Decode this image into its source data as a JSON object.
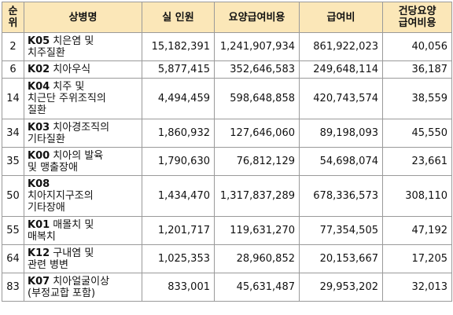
{
  "headers": {
    "rank": [
      "순",
      "위"
    ],
    "disease": "상병명",
    "patients": "실 인원",
    "care_cost": "요양급여비용",
    "benefit": "급여비",
    "per_case": [
      "건당요양",
      "급여비용"
    ]
  },
  "rows": [
    {
      "rank": "2",
      "code": "K05",
      "name_lines": [
        " 치은염 및",
        "치주질환"
      ],
      "patients": "15,182,391",
      "care_cost": "1,241,907,934",
      "benefit": "861,922,023",
      "per_case": "40,056"
    },
    {
      "rank": "6",
      "code": "K02",
      "name_lines": [
        " 치아우식"
      ],
      "patients": "5,877,415",
      "care_cost": "352,646,583",
      "benefit": "249,648,114",
      "per_case": "36,187"
    },
    {
      "rank": "14",
      "code": "K04",
      "name_lines": [
        " 치주 및",
        "치근단 주위조직의",
        "질환"
      ],
      "patients": "4,494,459",
      "care_cost": "598,648,858",
      "benefit": "420,743,574",
      "per_case": "38,559"
    },
    {
      "rank": "34",
      "code": "K03",
      "name_lines": [
        " 치아경조직의",
        "기타질환"
      ],
      "patients": "1,860,932",
      "care_cost": "127,646,060",
      "benefit": "89,198,093",
      "per_case": "45,550"
    },
    {
      "rank": "35",
      "code": "K00",
      "name_lines": [
        " 치아의 발육",
        "및 맹출장애"
      ],
      "patients": "1,790,630",
      "care_cost": "76,812,129",
      "benefit": "54,698,074",
      "per_case": "23,661"
    },
    {
      "rank": "50",
      "code": "K08",
      "name_lines": [
        "",
        "치아지지구조의",
        "기타장애"
      ],
      "patients": "1,434,470",
      "care_cost": "1,317,837,289",
      "benefit": "678,336,573",
      "per_case": "308,110"
    },
    {
      "rank": "55",
      "code": "K01",
      "name_lines": [
        " 매몰치 및",
        "매복치"
      ],
      "patients": "1,201,717",
      "care_cost": "119,631,270",
      "benefit": "77,354,505",
      "per_case": "47,192"
    },
    {
      "rank": "64",
      "code": "K12",
      "name_lines": [
        " 구내염 및",
        "관련 병변"
      ],
      "patients": "1,025,353",
      "care_cost": "28,960,852",
      "benefit": "20,153,667",
      "per_case": "17,205"
    },
    {
      "rank": "83",
      "code": "K07",
      "name_lines": [
        " 치아얼굴이상",
        "(부정교합 포함)"
      ],
      "patients": "833,001",
      "care_cost": "45,631,487",
      "benefit": "29,953,202",
      "per_case": "32,013"
    }
  ]
}
